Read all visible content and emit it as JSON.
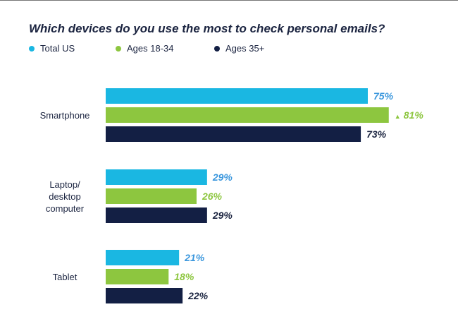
{
  "chart_data": {
    "type": "bar",
    "orientation": "horizontal",
    "title": "Which devices do you use the most to check personal emails?",
    "categories": [
      "Smartphone",
      "Laptop/\ndesktop\ncomputer",
      "Tablet"
    ],
    "series": [
      {
        "name": "Total US",
        "values": [
          75,
          29,
          21
        ],
        "color": "#1ab7e2",
        "label_color": "#3b97dd"
      },
      {
        "name": "Ages 18-34",
        "values": [
          81,
          26,
          18
        ],
        "color": "#8dc63f",
        "label_color": "#8dc63f"
      },
      {
        "name": "Ages 35+",
        "values": [
          73,
          29,
          22
        ],
        "color": "#131f44",
        "label_color": "#1b2440"
      }
    ],
    "value_format": "{v}%",
    "highlight": {
      "series": 1,
      "category": 0,
      "marker": "▲"
    },
    "xlim": [
      0,
      100
    ],
    "grid": false,
    "legend": "top-left"
  }
}
